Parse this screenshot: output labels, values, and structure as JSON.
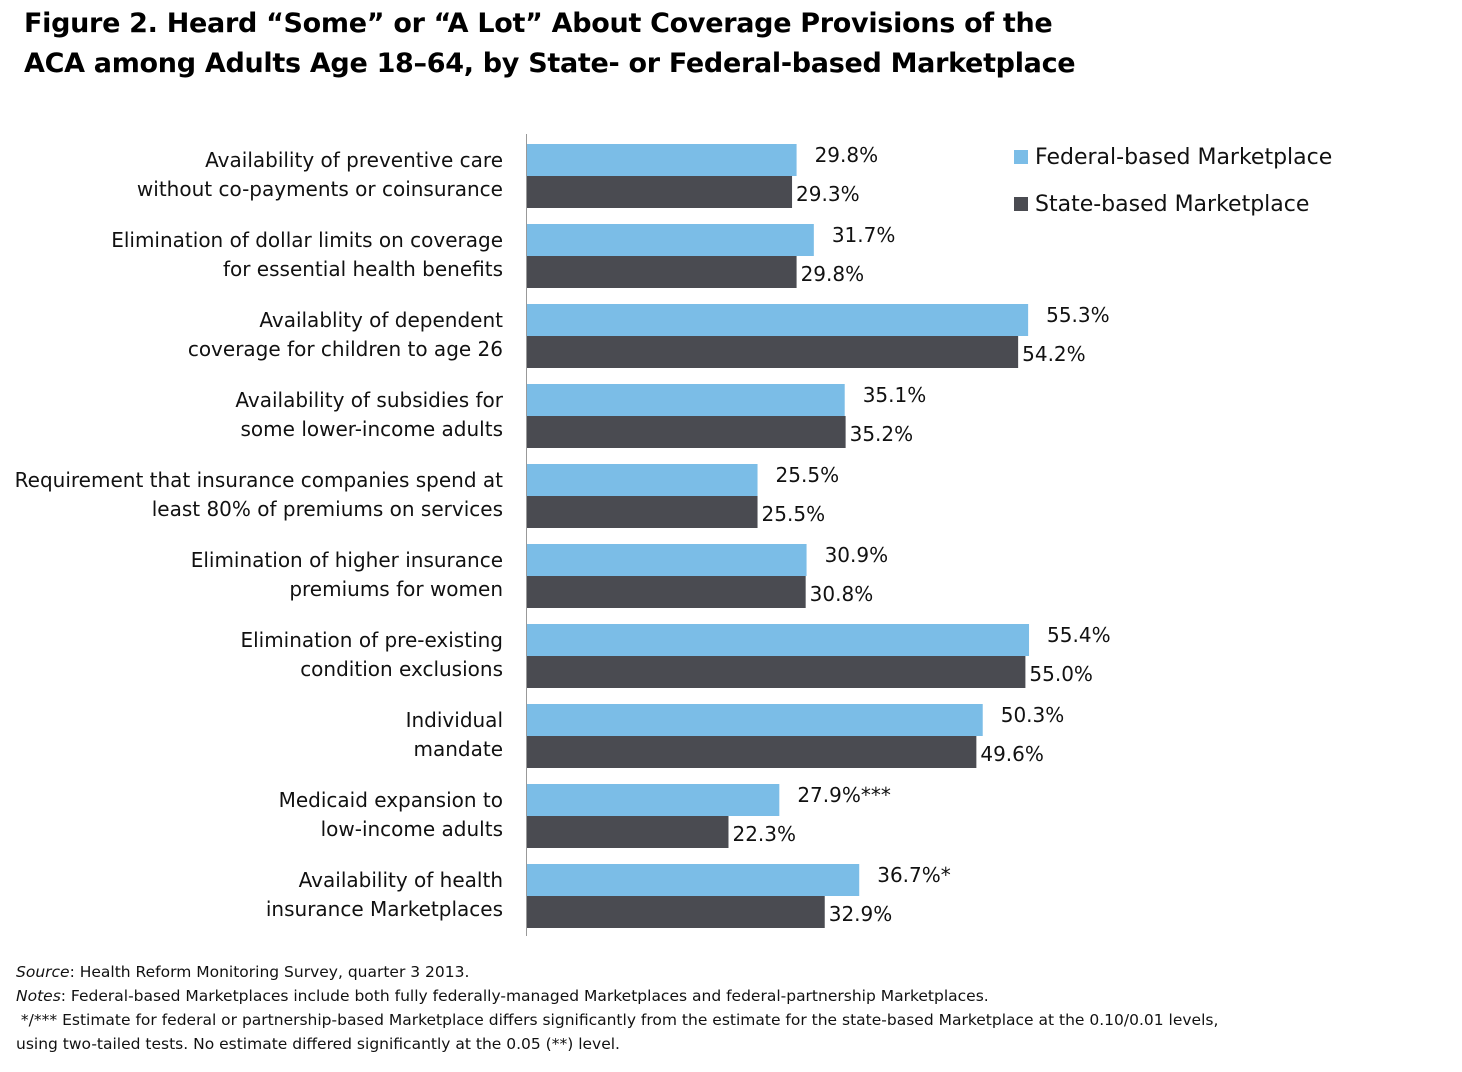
{
  "title": {
    "line1": "Figure 2. Heard “Some” or “A Lot” About Coverage Provisions of the",
    "line2": "ACA among Adults Age 18–64, by State- or Federal-based Marketplace"
  },
  "colors": {
    "federal": "#7bbde7",
    "state": "#4a4b51",
    "axis": "#999999"
  },
  "chart_data": {
    "type": "bar",
    "orientation": "horizontal",
    "xlim": [
      0,
      60
    ],
    "grid": false,
    "legend_position": "top-right",
    "categories": [
      [
        "Availability of preventive care",
        "without co-payments or coinsurance"
      ],
      [
        "Elimination of dollar limits on coverage",
        "for essential health benefits"
      ],
      [
        "Availablity of dependent",
        "coverage for children to age 26"
      ],
      [
        "Availability of subsidies for",
        "some lower-income adults"
      ],
      [
        "Requirement that insurance companies spend at",
        "least 80% of premiums on services"
      ],
      [
        "Elimination of higher insurance",
        "premiums for women"
      ],
      [
        "Elimination of pre-existing",
        "condition exclusions"
      ],
      [
        "Individual",
        "mandate"
      ],
      [
        "Medicaid expansion to",
        "low-income adults"
      ],
      [
        "Availability of health",
        "insurance Marketplaces"
      ]
    ],
    "series": [
      {
        "name": "Federal-based Marketplace",
        "values": [
          29.8,
          31.7,
          55.3,
          35.1,
          25.5,
          30.9,
          55.4,
          50.3,
          27.9,
          36.7
        ],
        "labels": [
          "29.8%",
          "31.7%",
          "55.3%",
          "35.1%",
          "25.5%",
          "30.9%",
          "55.4%",
          "50.3%",
          "27.9%***",
          "36.7%*"
        ]
      },
      {
        "name": "State-based Marketplace",
        "values": [
          29.3,
          29.8,
          54.2,
          35.2,
          25.5,
          30.8,
          55.0,
          49.6,
          22.3,
          32.9
        ],
        "labels": [
          "29.3%",
          "29.8%",
          "54.2%",
          "35.2%",
          "25.5%",
          "30.8%",
          "55.0%",
          "49.6%",
          "22.3%",
          "32.9%"
        ]
      }
    ]
  },
  "notes": {
    "source_label": "Source",
    "source_text": ": Health Reform Monitoring Survey, quarter 3 2013.",
    "notes_label": "Notes",
    "notes_text": ": Federal-based Marketplaces include both fully federally-managed Marketplaces and federal-partnership Marketplaces.",
    "sig_line1": " */*** Estimate for federal or partnership-based Marketplace differs significantly from the estimate for the state-based Marketplace at the 0.10/0.01 levels,",
    "sig_line2": "using two-tailed tests. No estimate differed significantly at the 0.05 (**) level."
  }
}
